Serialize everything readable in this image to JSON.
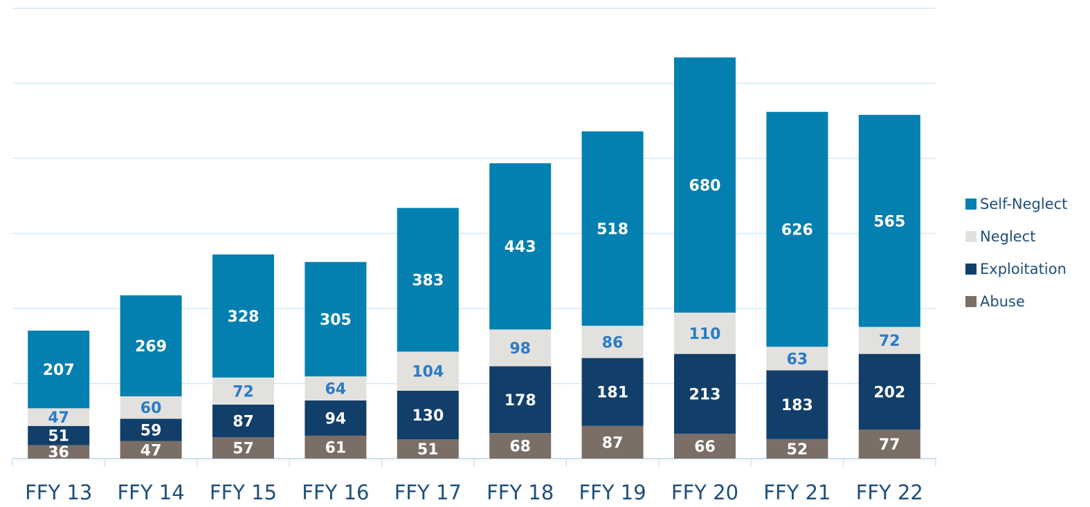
{
  "chart_data": {
    "type": "stacked_bar",
    "categories": [
      "FFY 13",
      "FFY 14",
      "FFY 15",
      "FFY 16",
      "FFY 17",
      "FFY 18",
      "FFY 19",
      "FFY 20",
      "FFY 21",
      "FFY 22"
    ],
    "series": [
      {
        "name": "Abuse",
        "color": "#7a6e66",
        "label_color": "#ffffff",
        "values": [
          36,
          47,
          57,
          61,
          51,
          68,
          87,
          66,
          52,
          77
        ]
      },
      {
        "name": "Exploitation",
        "color": "#123f6a",
        "label_color": "#ffffff",
        "values": [
          51,
          59,
          87,
          94,
          130,
          178,
          181,
          213,
          183,
          202
        ]
      },
      {
        "name": "Neglect",
        "color": "#e3e1de",
        "label_color": "#2a7bc8",
        "values": [
          47,
          60,
          72,
          64,
          104,
          98,
          86,
          110,
          63,
          72
        ]
      },
      {
        "name": "Self-Neglect",
        "color": "#0480b0",
        "label_color": "#ffffff",
        "values": [
          207,
          269,
          328,
          305,
          383,
          443,
          518,
          680,
          626,
          565
        ]
      }
    ],
    "ylim": [
      0,
      1200
    ],
    "yticks": [
      0,
      200,
      400,
      600,
      800,
      1000,
      1200
    ],
    "grid": true,
    "legend": "right"
  }
}
